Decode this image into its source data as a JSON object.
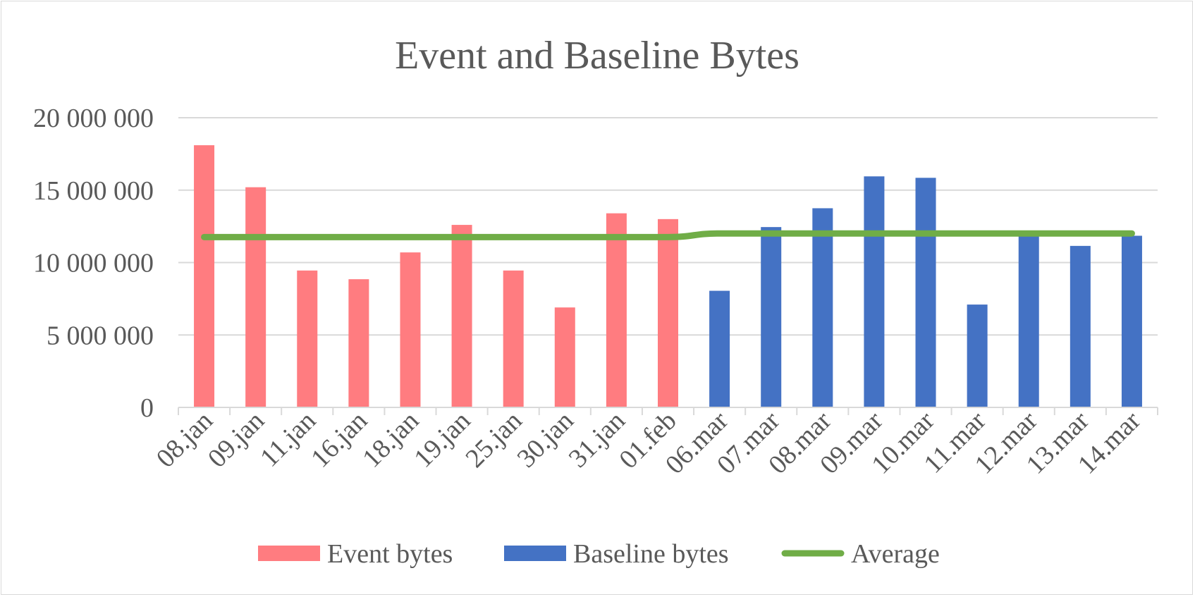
{
  "chart_data": {
    "type": "bar",
    "title": "Event and Baseline Bytes",
    "xlabel": "",
    "ylabel": "",
    "ylim": [
      0,
      20000000
    ],
    "yticks": [
      0,
      5000000,
      10000000,
      15000000,
      20000000
    ],
    "ytick_labels": [
      "0",
      "5 000 000",
      "10 000 000",
      "15 000 000",
      "20 000 000"
    ],
    "grid": true,
    "legend_position": "bottom",
    "categories": [
      "08.jan",
      "09.jan",
      "11.jan",
      "16.jan",
      "18.jan",
      "19.jan",
      "25.jan",
      "30.jan",
      "31.jan",
      "01.feb",
      "06.mar",
      "07.mar",
      "08.mar",
      "09.mar",
      "10.mar",
      "11.mar",
      "12.mar",
      "13.mar",
      "14.mar"
    ],
    "series": [
      {
        "name": "Event bytes",
        "type": "bar",
        "color": "#ff7c80",
        "values": [
          18100000,
          15200000,
          9450000,
          8850000,
          10700000,
          12600000,
          9450000,
          6900000,
          13400000,
          13000000,
          null,
          null,
          null,
          null,
          null,
          null,
          null,
          null,
          null
        ]
      },
      {
        "name": "Baseline bytes",
        "type": "bar",
        "color": "#4472c4",
        "values": [
          null,
          null,
          null,
          null,
          null,
          null,
          null,
          null,
          null,
          null,
          8050000,
          12450000,
          13750000,
          15950000,
          15850000,
          7100000,
          11950000,
          11150000,
          11850000
        ]
      },
      {
        "name": "Average",
        "type": "line",
        "color": "#70ad47",
        "values": [
          11760000,
          11760000,
          11760000,
          11760000,
          11760000,
          11760000,
          11760000,
          11760000,
          11760000,
          11760000,
          12010000,
          12010000,
          12010000,
          12010000,
          12010000,
          12010000,
          12010000,
          12010000,
          12010000
        ]
      }
    ]
  }
}
